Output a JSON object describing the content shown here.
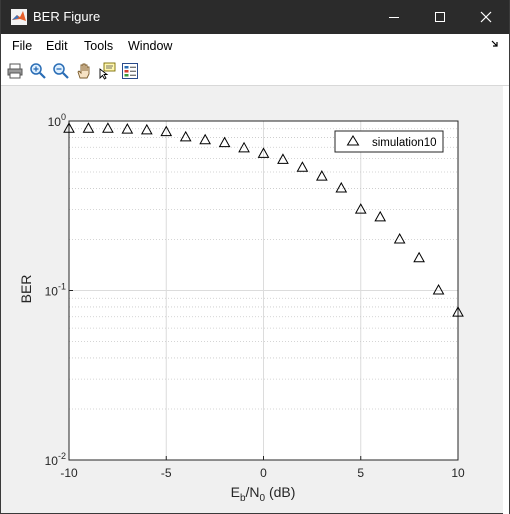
{
  "window": {
    "title": "BER Figure",
    "controls": [
      "minimize",
      "maximize",
      "close"
    ]
  },
  "menu": {
    "file": "File",
    "edit": "Edit",
    "tools": "Tools",
    "window": "Window"
  },
  "toolbar": {
    "icons": [
      "print-icon",
      "zoom-in-icon",
      "zoom-out-icon",
      "pan-icon",
      "data-cursor-icon",
      "legend-icon"
    ]
  },
  "colors": {
    "titlebar": "#2b2b2b",
    "figure_background": "#f0f0f0",
    "axes_background": "#ffffff",
    "marker": "#000000",
    "grid": "#d0d0d0"
  },
  "chart_data": {
    "type": "scatter",
    "xlabel_main": "E",
    "xlabel_sub1": "b",
    "xlabel_mid": "/N",
    "xlabel_sub2": "0",
    "xlabel_tail": " (dB)",
    "ylabel": "BER",
    "xlim": [
      -10,
      10
    ],
    "ylim": [
      0.01,
      1
    ],
    "yscale": "log",
    "grid": true,
    "legend_position": "top-right",
    "x_ticks": [
      "-10",
      "-5",
      "0",
      "5",
      "10"
    ],
    "y_ticks": [
      {
        "base": "10",
        "exp": "0"
      },
      {
        "base": "10",
        "exp": "-1"
      },
      {
        "base": "10",
        "exp": "-2"
      }
    ],
    "series": [
      {
        "name": "simulation10",
        "marker": "triangle",
        "x": [
          -10,
          -9,
          -8,
          -7,
          -6,
          -5,
          -4,
          -3,
          -2,
          -1,
          0,
          1,
          2,
          3,
          4,
          5,
          6,
          7,
          8,
          9,
          10
        ],
        "y": [
          0.9,
          0.9,
          0.9,
          0.89,
          0.88,
          0.86,
          0.8,
          0.77,
          0.74,
          0.69,
          0.64,
          0.59,
          0.53,
          0.47,
          0.4,
          0.3,
          0.27,
          0.2,
          0.155,
          0.1,
          0.074
        ]
      }
    ]
  }
}
